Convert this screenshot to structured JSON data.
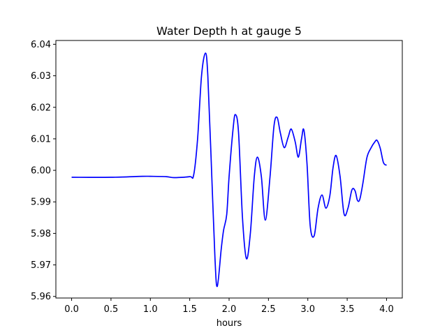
{
  "chart_data": {
    "type": "line",
    "title": "Water Depth h at gauge 5",
    "xlabel": "hours",
    "ylabel": "",
    "xlim": [
      -0.2,
      4.2
    ],
    "ylim": [
      5.9595,
      6.0412
    ],
    "xticks": [
      0.0,
      0.5,
      1.0,
      1.5,
      2.0,
      2.5,
      3.0,
      3.5,
      4.0
    ],
    "xtick_labels": [
      "0.0",
      "0.5",
      "1.0",
      "1.5",
      "2.0",
      "2.5",
      "3.0",
      "3.5",
      "4.0"
    ],
    "yticks": [
      5.96,
      5.97,
      5.98,
      5.99,
      6.0,
      6.01,
      6.02,
      6.03,
      6.04
    ],
    "ytick_labels": [
      "5.96",
      "5.97",
      "5.98",
      "5.99",
      "6.00",
      "6.01",
      "6.02",
      "6.03",
      "6.04"
    ],
    "grid": false,
    "series": [
      {
        "color": "#0000ff",
        "x": [
          0.0,
          0.5,
          0.9,
          1.0,
          1.2,
          1.3,
          1.5,
          1.55,
          1.6,
          1.65,
          1.7,
          1.73,
          1.77,
          1.82,
          1.85,
          1.9,
          1.93,
          1.97,
          2.0,
          2.05,
          2.08,
          2.12,
          2.17,
          2.22,
          2.27,
          2.32,
          2.36,
          2.41,
          2.46,
          2.52,
          2.57,
          2.61,
          2.65,
          2.7,
          2.75,
          2.79,
          2.84,
          2.88,
          2.92,
          2.95,
          2.99,
          3.03,
          3.08,
          3.13,
          3.18,
          3.23,
          3.28,
          3.32,
          3.36,
          3.41,
          3.46,
          3.51,
          3.56,
          3.6,
          3.63,
          3.66,
          3.7,
          3.75,
          3.8,
          3.85,
          3.88,
          3.92,
          3.96,
          4.0
        ],
        "y": [
          5.9978,
          5.9978,
          5.9981,
          5.9981,
          5.998,
          5.9977,
          5.998,
          5.9985,
          6.01,
          6.03,
          6.0372,
          6.03,
          6.005,
          5.9725,
          5.9632,
          5.975,
          5.981,
          5.986,
          5.998,
          6.013,
          6.0177,
          6.012,
          5.985,
          5.972,
          5.98,
          5.998,
          6.0042,
          5.998,
          5.9842,
          5.998,
          6.014,
          6.0168,
          6.012,
          6.0072,
          6.0105,
          6.0131,
          6.009,
          6.0042,
          6.01,
          6.0128,
          6.002,
          5.9825,
          5.9792,
          5.988,
          5.9922,
          5.988,
          5.992,
          6.0008,
          6.0047,
          5.998,
          5.9862,
          5.988,
          5.9938,
          5.9935,
          5.9905,
          5.9908,
          5.996,
          6.004,
          6.007,
          6.009,
          6.0095,
          6.007,
          6.0025,
          6.0016
        ]
      }
    ]
  }
}
